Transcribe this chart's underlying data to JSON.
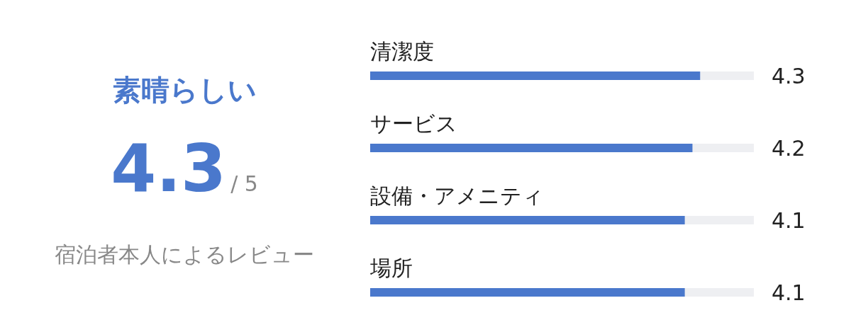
{
  "chart_data": [
    {
      "type": "other",
      "title": "素晴らしい",
      "annotations": [
        "4.3",
        "/ 5",
        "宿泊者本人によるレビュー"
      ]
    },
    {
      "type": "bar",
      "orientation": "horizontal",
      "categories": [
        "清潔度",
        "サービス",
        "設備・アメニティ",
        "場所"
      ],
      "values": [
        4.3,
        4.2,
        4.1,
        4.1
      ],
      "color": "#4a78cc",
      "xlim": [
        0,
        5
      ],
      "tick_labels": "y",
      "data_labels": true
    }
  ]
}
